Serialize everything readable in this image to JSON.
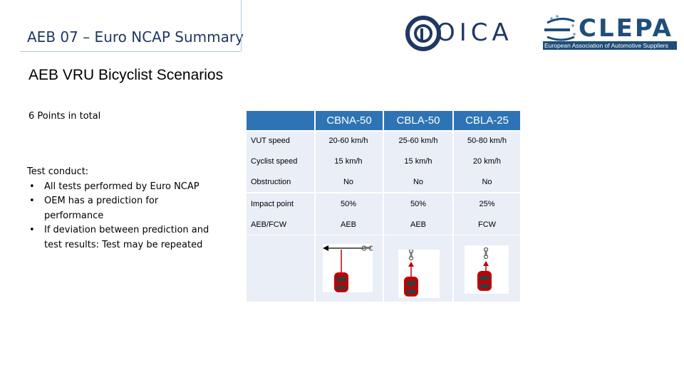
{
  "header": {
    "title": "AEB 07 – Euro NCAP Summary",
    "oica_logo": "OICA",
    "clepa_logo": "CLEPA",
    "clepa_subtitle": "European Association of Automotive Suppliers"
  },
  "slide": {
    "title": "AEB VRU Bicyclist Scenarios",
    "points": "6 Points in total",
    "test_conduct": {
      "heading": "Test conduct:",
      "bullet": "•",
      "items": [
        "All tests performed by Euro NCAP",
        "OEM has a prediction for performance",
        "If deviation between prediction and test results: Test may be repeated"
      ]
    }
  },
  "table": {
    "columns": [
      "CBNA-50",
      "CBLA-50",
      "CBLA-25"
    ],
    "rows": [
      {
        "label": "VUT speed",
        "values": [
          "20-60 km/h",
          "25-60 km/h",
          "50-80 km/h"
        ]
      },
      {
        "label": "Cyclist speed",
        "values": [
          "15 km/h",
          "15 km/h",
          "20 km/h"
        ]
      },
      {
        "label": "Obstruction",
        "values": [
          "No",
          "No",
          "No"
        ]
      },
      {
        "label": "Impact point",
        "values": [
          "50%",
          "50%",
          "25%"
        ]
      },
      {
        "label": "AEB/FCW",
        "values": [
          "AEB",
          "AEB",
          "FCW"
        ]
      }
    ]
  },
  "colors": {
    "header_blue": "#2e74b5",
    "row_fill": "#e9eef7",
    "title_navy": "#1f3864",
    "car_red": "#c00000"
  },
  "icons": [
    "oica-logo",
    "clepa-logo",
    "car-icon",
    "bicycle-icon",
    "arrow-left-icon",
    "arrow-up-icon"
  ]
}
